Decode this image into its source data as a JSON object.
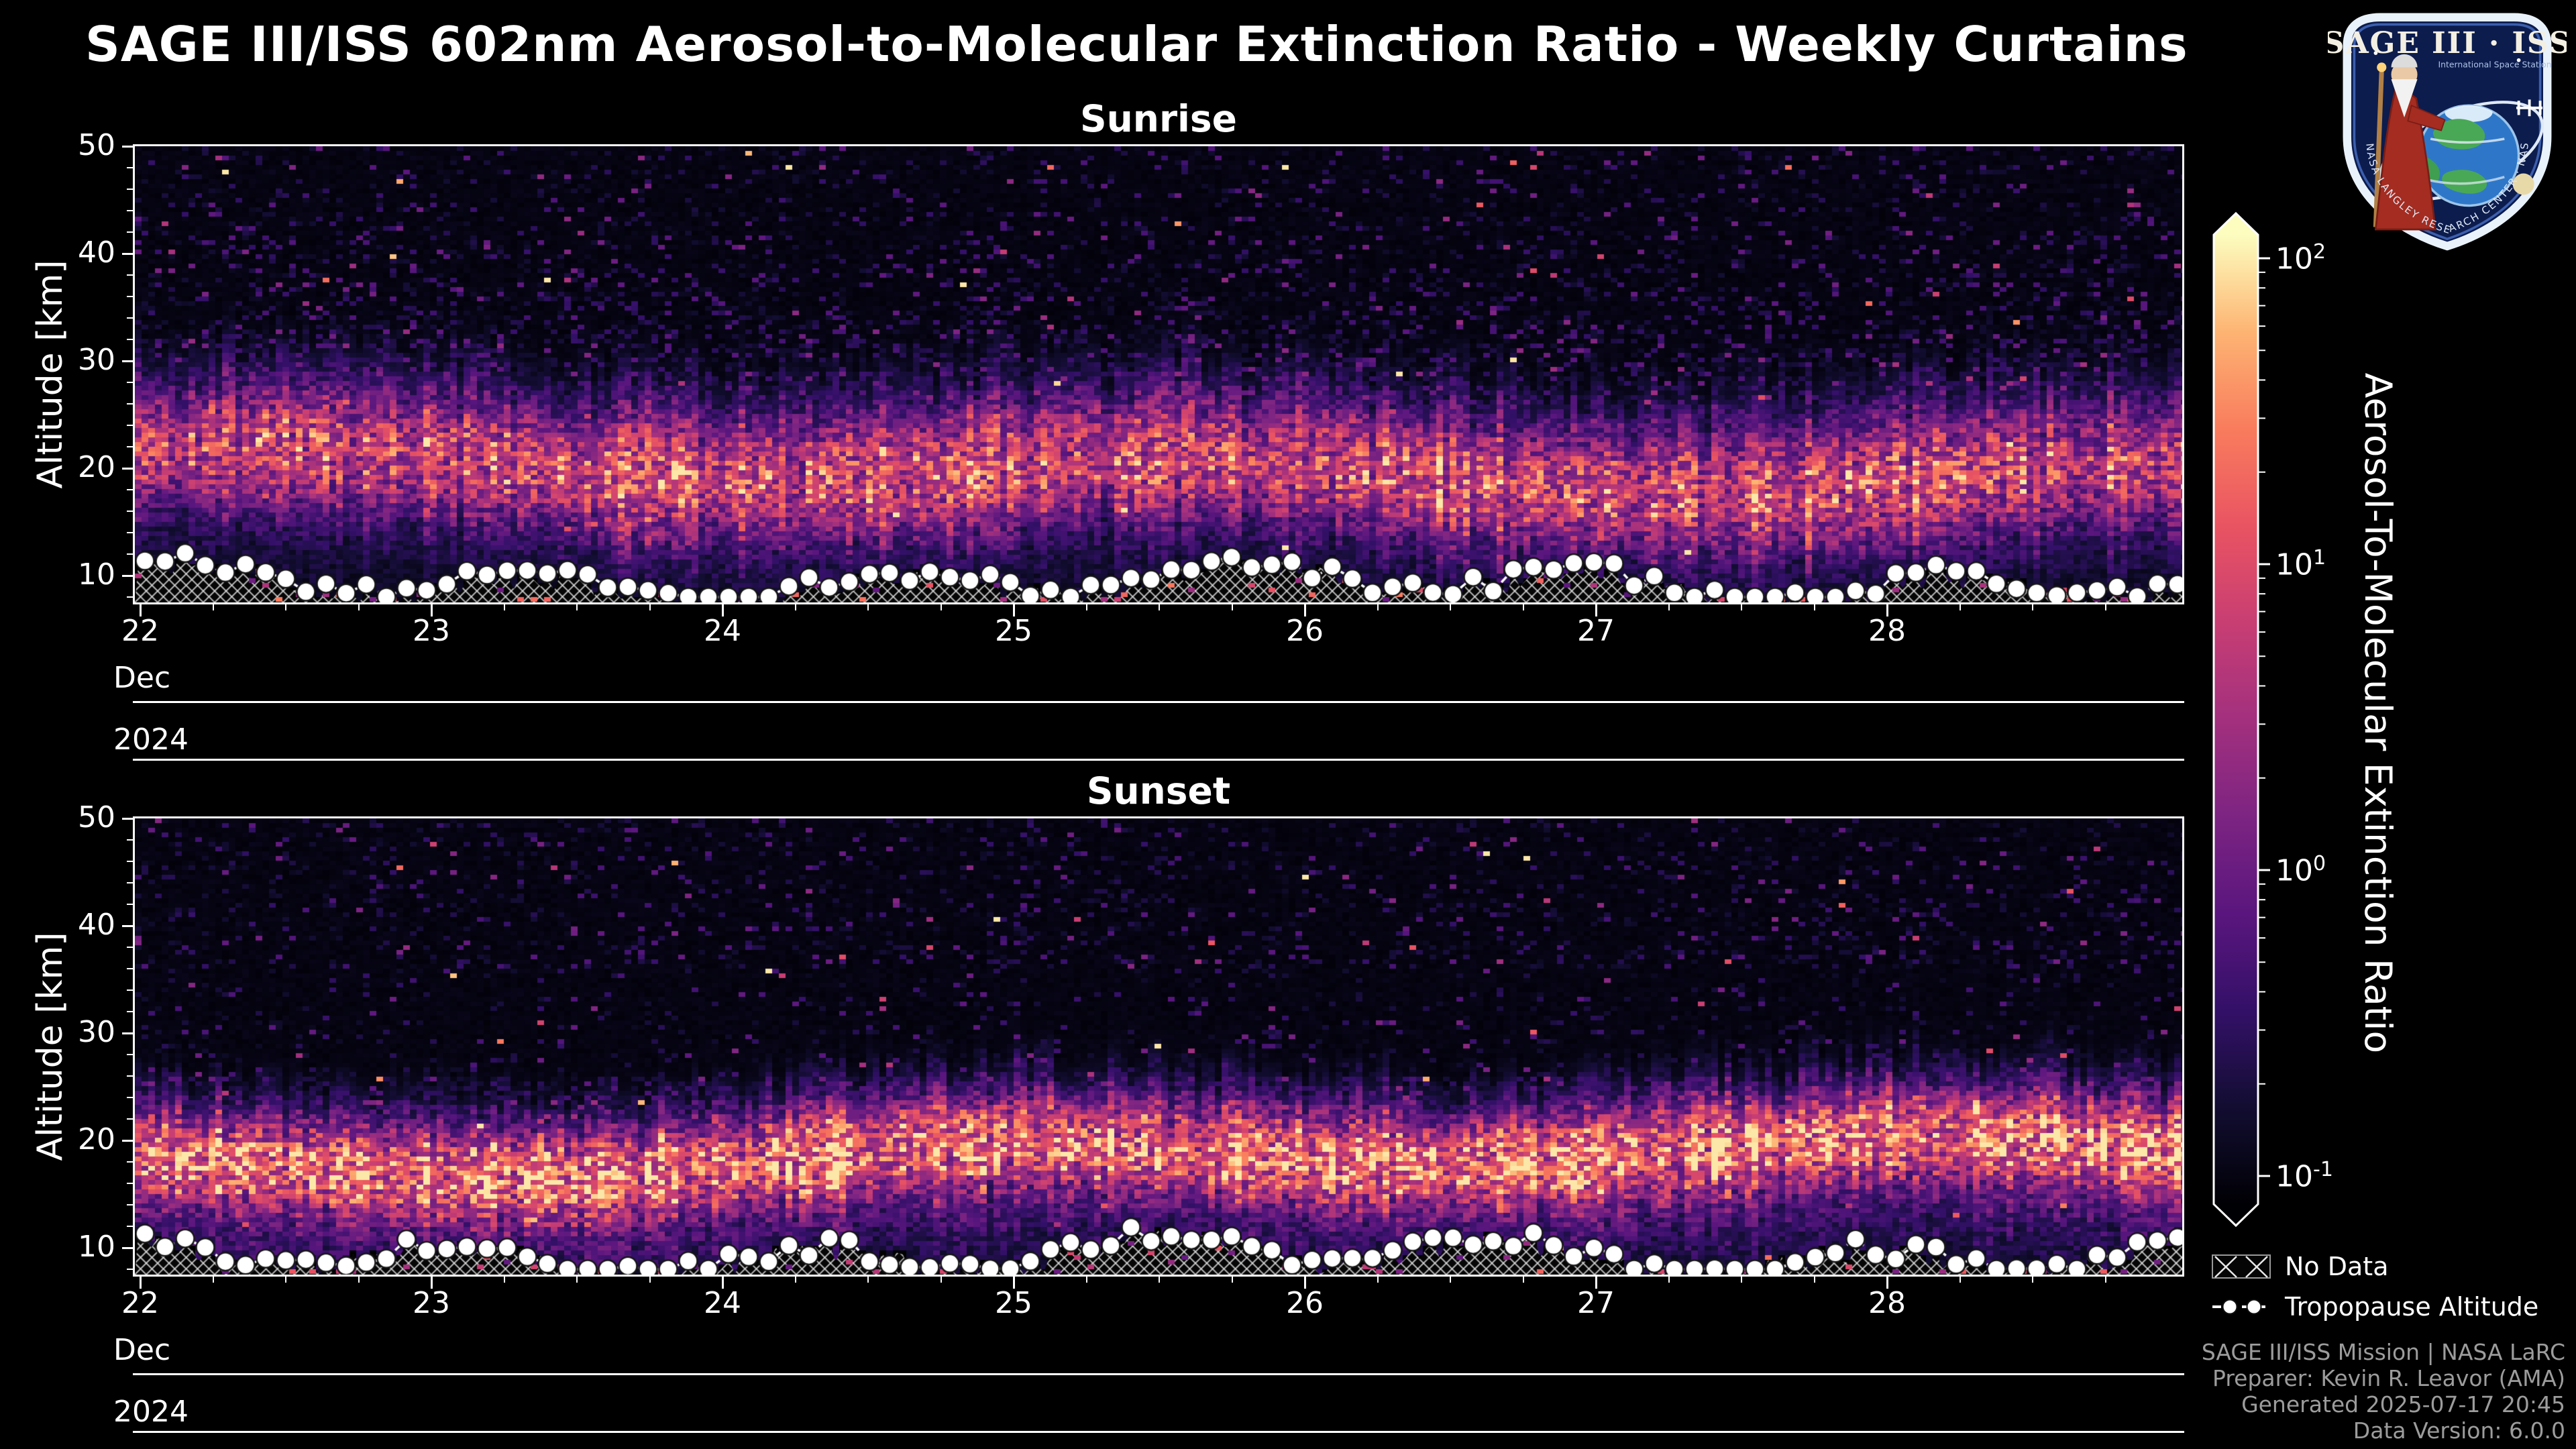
{
  "header": {
    "title": "SAGE III/ISS 602nm Aerosol-to-Molecular Extinction Ratio - Weekly Curtains",
    "logo_title": "SAGE III · ISS",
    "logo_subtitle": "International Space Station",
    "logo_ring": "NASA LANGLEY RESEARCH CENTER · NASA · ESA"
  },
  "chart_data": {
    "type": "heatmap",
    "panels": [
      {
        "id": "sunrise",
        "title": "Sunrise",
        "ylabel": "Altitude [km]",
        "y_ticks": [
          10,
          20,
          30,
          40,
          50
        ],
        "y_range_km": [
          7.5,
          50
        ],
        "x_ticks": [
          22,
          23,
          24,
          25,
          26,
          27,
          28
        ],
        "x_range_days": [
          22,
          29
        ],
        "month_label": "Dec",
        "year_label": "2024",
        "render": {
          "seed": 42,
          "phase": 0.7,
          "band_center_km": 19.8,
          "band_sigma_km": 4.7,
          "band_amp": 0.58,
          "gap": false,
          "tropopause_range_km": [
            8,
            12.9
          ]
        }
      },
      {
        "id": "sunset",
        "title": "Sunset",
        "ylabel": "Altitude [km]",
        "y_ticks": [
          10,
          20,
          30,
          40,
          50
        ],
        "y_range_km": [
          7.5,
          50
        ],
        "x_ticks": [
          22,
          23,
          24,
          25,
          26,
          27,
          28
        ],
        "x_range_days": [
          22,
          29
        ],
        "month_label": "Dec",
        "year_label": "2024",
        "render": {
          "seed": 1337,
          "phase": 2.1,
          "band_center_km": 18.2,
          "band_sigma_km": 3.6,
          "band_amp": 0.74,
          "gap": true,
          "tropopause_range_km": [
            8,
            12.9
          ]
        }
      }
    ],
    "colorbar": {
      "label": "Aerosol-To-Molecular Extinction Ratio",
      "scale": "log",
      "colormap": "magma",
      "ticks": [
        "10^2",
        "10^1",
        "10^0",
        "10^-1"
      ],
      "tick_exponents": [
        2,
        1,
        0,
        -1
      ],
      "range_exponents": [
        -1,
        2
      ],
      "extend": "both"
    },
    "legend": [
      {
        "label": "No Data",
        "marker": "x-hatch"
      },
      {
        "label": "Tropopause Altitude",
        "marker": "dashed-line-with-dots"
      }
    ]
  },
  "credits": {
    "line1": "SAGE III/ISS Mission | NASA LaRC",
    "line2": "Preparer: Kevin R. Leavor (AMA)",
    "line3": "Generated 2025-07-17 20:45",
    "line4": "Data Version: 6.0.0"
  }
}
